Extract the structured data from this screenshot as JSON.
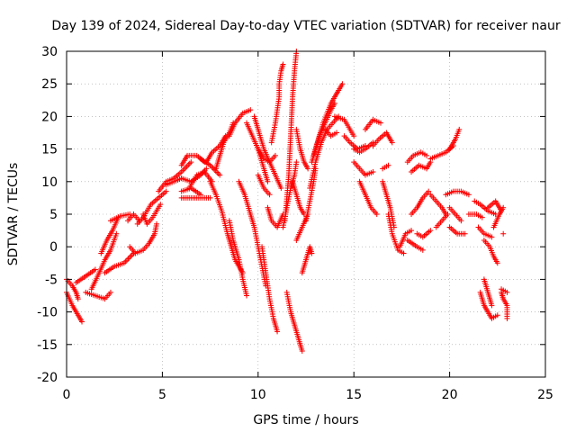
{
  "chart_data": {
    "type": "scatter",
    "title": "Day 139 of 2024, Sidereal Day-to-day VTEC variation (SDTVAR) for receiver naur",
    "xlabel": "GPS time / hours",
    "ylabel": "SDTVAR / TECUs",
    "xlim": [
      0,
      25
    ],
    "ylim": [
      -20,
      30
    ],
    "xticks": [
      "0",
      "5",
      "10",
      "15",
      "20",
      "25"
    ],
    "xtick_values": [
      0,
      5,
      10,
      15,
      20,
      25
    ],
    "yticks": [
      "-20",
      "-15",
      "-10",
      "-5",
      "0",
      "5",
      "10",
      "15",
      "20",
      "25",
      "30"
    ],
    "ytick_values": [
      -20,
      -15,
      -10,
      -5,
      0,
      5,
      10,
      15,
      20,
      25,
      30
    ],
    "grid": true,
    "marker": "+",
    "series_color": "#ff0000",
    "tracks": [
      [
        [
          0.0,
          -7
        ],
        [
          0.3,
          -9
        ],
        [
          0.6,
          -10.5
        ],
        [
          0.8,
          -11.5
        ]
      ],
      [
        [
          0.0,
          -5
        ],
        [
          0.3,
          -6
        ],
        [
          0.5,
          -7
        ],
        [
          0.6,
          -8
        ]
      ],
      [
        [
          0.5,
          -5.5
        ],
        [
          1.0,
          -4.5
        ],
        [
          1.5,
          -3.5
        ]
      ],
      [
        [
          1.0,
          -7
        ],
        [
          1.5,
          -7.5
        ],
        [
          2.0,
          -8
        ],
        [
          2.3,
          -7
        ]
      ],
      [
        [
          1.3,
          -6.5
        ],
        [
          1.7,
          -4
        ],
        [
          2.0,
          -2
        ],
        [
          2.3,
          -0.5
        ],
        [
          2.6,
          2
        ]
      ],
      [
        [
          1.8,
          -1
        ],
        [
          2.1,
          1
        ],
        [
          2.4,
          2.5
        ],
        [
          2.7,
          4.5
        ]
      ],
      [
        [
          2.3,
          4
        ],
        [
          2.8,
          4.7
        ],
        [
          3.3,
          5
        ]
      ],
      [
        [
          2.0,
          -4
        ],
        [
          2.5,
          -3
        ],
        [
          3.0,
          -2.5
        ],
        [
          3.5,
          -1
        ]
      ],
      [
        [
          3.2,
          4
        ],
        [
          3.5,
          5
        ],
        [
          3.8,
          4
        ]
      ],
      [
        [
          3.3,
          0
        ],
        [
          3.6,
          -1
        ],
        [
          4.0,
          -0.5
        ],
        [
          4.3,
          0.5
        ],
        [
          4.6,
          2
        ],
        [
          4.7,
          3.5
        ]
      ],
      [
        [
          3.7,
          3.5
        ],
        [
          4.0,
          4.5
        ],
        [
          4.4,
          6.5
        ],
        [
          4.8,
          7.5
        ],
        [
          5.2,
          8.5
        ]
      ],
      [
        [
          4.0,
          5
        ],
        [
          4.2,
          3.5
        ],
        [
          4.5,
          4.5
        ],
        [
          4.9,
          6.5
        ]
      ],
      [
        [
          4.8,
          8.5
        ],
        [
          5.2,
          10
        ],
        [
          5.6,
          10.5
        ],
        [
          6.0,
          11.5
        ],
        [
          6.5,
          13
        ]
      ],
      [
        [
          5.2,
          9.5
        ],
        [
          5.6,
          10
        ],
        [
          6.0,
          10.5
        ]
      ],
      [
        [
          6.0,
          12.5
        ],
        [
          6.3,
          14
        ],
        [
          6.8,
          14
        ],
        [
          7.2,
          13
        ]
      ],
      [
        [
          6.0,
          10.5
        ],
        [
          6.5,
          10
        ],
        [
          7.0,
          11
        ],
        [
          7.3,
          12
        ]
      ],
      [
        [
          6.0,
          8.5
        ],
        [
          6.5,
          9
        ],
        [
          7.0,
          8
        ]
      ],
      [
        [
          6.0,
          7.5
        ],
        [
          6.5,
          7.5
        ],
        [
          7.0,
          7.5
        ],
        [
          7.5,
          7.5
        ]
      ],
      [
        [
          6.4,
          9
        ],
        [
          6.8,
          11
        ],
        [
          7.2,
          11.5
        ],
        [
          7.6,
          10
        ]
      ],
      [
        [
          7.0,
          13.5
        ],
        [
          7.5,
          12.5
        ],
        [
          8.0,
          11
        ]
      ],
      [
        [
          7.3,
          13
        ],
        [
          7.6,
          14.5
        ],
        [
          8.0,
          15.5
        ],
        [
          8.3,
          17
        ]
      ],
      [
        [
          7.5,
          10
        ],
        [
          7.8,
          8
        ],
        [
          8.1,
          5.5
        ],
        [
          8.4,
          2
        ],
        [
          8.6,
          0
        ],
        [
          8.8,
          -2
        ],
        [
          9.0,
          -3
        ],
        [
          9.2,
          -4
        ]
      ],
      [
        [
          7.8,
          12
        ],
        [
          8.0,
          14
        ],
        [
          8.2,
          16
        ],
        [
          8.5,
          17.5
        ],
        [
          8.7,
          19
        ]
      ],
      [
        [
          8.5,
          4
        ],
        [
          8.7,
          1
        ],
        [
          9.0,
          -2
        ],
        [
          9.2,
          -5
        ],
        [
          9.4,
          -7.5
        ]
      ],
      [
        [
          8.5,
          17
        ],
        [
          8.8,
          19
        ],
        [
          9.2,
          20.5
        ],
        [
          9.6,
          21
        ]
      ],
      [
        [
          9.0,
          10
        ],
        [
          9.3,
          8
        ],
        [
          9.6,
          5
        ],
        [
          9.8,
          3
        ],
        [
          10.0,
          0
        ],
        [
          10.2,
          -3
        ],
        [
          10.4,
          -6
        ]
      ],
      [
        [
          9.4,
          19
        ],
        [
          9.7,
          17
        ],
        [
          10.0,
          15
        ],
        [
          10.3,
          12
        ],
        [
          10.5,
          10
        ]
      ],
      [
        [
          9.8,
          20
        ],
        [
          10.0,
          18
        ],
        [
          10.3,
          15
        ],
        [
          10.6,
          13
        ],
        [
          10.9,
          11
        ],
        [
          11.2,
          9
        ]
      ],
      [
        [
          10.0,
          15
        ],
        [
          10.3,
          13.5
        ],
        [
          10.6,
          13
        ],
        [
          10.9,
          14
        ]
      ],
      [
        [
          10.2,
          0
        ],
        [
          10.4,
          -4
        ],
        [
          10.6,
          -8
        ],
        [
          10.8,
          -11
        ],
        [
          11.0,
          -13
        ]
      ],
      [
        [
          10.0,
          11
        ],
        [
          10.3,
          9
        ],
        [
          10.6,
          8
        ]
      ],
      [
        [
          10.5,
          6
        ],
        [
          10.7,
          4
        ],
        [
          11.0,
          3
        ],
        [
          11.3,
          5
        ]
      ],
      [
        [
          10.7,
          16
        ],
        [
          10.9,
          19
        ],
        [
          11.0,
          21
        ],
        [
          11.1,
          23
        ],
        [
          11.1,
          25
        ],
        [
          11.2,
          27
        ],
        [
          11.3,
          28
        ]
      ],
      [
        [
          11.3,
          3
        ],
        [
          11.5,
          6
        ],
        [
          11.7,
          9
        ],
        [
          11.9,
          11
        ],
        [
          12.0,
          13
        ]
      ],
      [
        [
          11.4,
          4
        ],
        [
          11.6,
          11
        ],
        [
          11.7,
          17
        ],
        [
          11.8,
          23
        ],
        [
          11.9,
          27
        ],
        [
          12.0,
          30
        ]
      ],
      [
        [
          11.5,
          -7
        ],
        [
          11.7,
          -10
        ],
        [
          11.9,
          -12
        ],
        [
          12.1,
          -14
        ],
        [
          12.3,
          -16
        ]
      ],
      [
        [
          11.8,
          10
        ],
        [
          12.0,
          8
        ],
        [
          12.2,
          6
        ],
        [
          12.4,
          5
        ]
      ],
      [
        [
          12.0,
          18
        ],
        [
          12.2,
          15
        ],
        [
          12.4,
          13
        ],
        [
          12.6,
          12
        ]
      ],
      [
        [
          12.3,
          -4
        ],
        [
          12.5,
          -2
        ],
        [
          12.7,
          0
        ],
        [
          12.8,
          -1
        ]
      ],
      [
        [
          12.0,
          1
        ],
        [
          12.3,
          3
        ],
        [
          12.6,
          5
        ]
      ],
      [
        [
          12.5,
          4
        ],
        [
          12.7,
          7
        ],
        [
          12.9,
          10
        ],
        [
          13.0,
          12
        ]
      ],
      [
        [
          12.7,
          9
        ],
        [
          13.0,
          13
        ],
        [
          13.3,
          16
        ],
        [
          13.6,
          18
        ],
        [
          13.9,
          19
        ],
        [
          14.2,
          20
        ]
      ],
      [
        [
          12.8,
          13
        ],
        [
          13.1,
          16
        ],
        [
          13.4,
          19
        ],
        [
          13.8,
          22
        ],
        [
          14.1,
          23.5
        ],
        [
          14.4,
          25
        ]
      ],
      [
        [
          12.9,
          14
        ],
        [
          13.2,
          17
        ],
        [
          13.5,
          19
        ],
        [
          13.8,
          21
        ],
        [
          14.0,
          22
        ]
      ],
      [
        [
          13.5,
          18
        ],
        [
          13.8,
          17
        ],
        [
          14.1,
          17.5
        ]
      ],
      [
        [
          14.0,
          20
        ],
        [
          14.5,
          19.5
        ],
        [
          15.0,
          17
        ]
      ],
      [
        [
          14.5,
          17
        ],
        [
          14.8,
          16
        ],
        [
          15.2,
          15
        ],
        [
          15.6,
          15.5
        ]
      ],
      [
        [
          15.0,
          15
        ],
        [
          15.3,
          14.5
        ],
        [
          15.6,
          15
        ],
        [
          16.0,
          16
        ]
      ],
      [
        [
          15.0,
          13
        ],
        [
          15.3,
          12
        ],
        [
          15.6,
          11
        ],
        [
          16.0,
          11.5
        ]
      ],
      [
        [
          15.3,
          10
        ],
        [
          15.6,
          8
        ],
        [
          15.9,
          6
        ],
        [
          16.2,
          5
        ]
      ],
      [
        [
          15.6,
          18
        ],
        [
          16.0,
          19.5
        ],
        [
          16.4,
          19
        ]
      ],
      [
        [
          16.0,
          15.5
        ],
        [
          16.3,
          16.5
        ],
        [
          16.7,
          17.5
        ],
        [
          17.0,
          16
        ]
      ],
      [
        [
          16.5,
          12
        ],
        [
          16.8,
          12.5
        ]
      ],
      [
        [
          16.5,
          10
        ],
        [
          16.7,
          8
        ],
        [
          16.9,
          6
        ],
        [
          17.1,
          3
        ]
      ],
      [
        [
          16.8,
          5
        ],
        [
          17.0,
          2
        ],
        [
          17.3,
          -0.5
        ],
        [
          17.6,
          -1
        ]
      ],
      [
        [
          17.4,
          0
        ],
        [
          17.7,
          2
        ],
        [
          18.0,
          2.5
        ]
      ],
      [
        [
          17.8,
          1
        ],
        [
          18.3,
          0
        ],
        [
          18.6,
          -0.5
        ]
      ],
      [
        [
          18.0,
          5
        ],
        [
          18.3,
          6
        ],
        [
          18.6,
          7.5
        ],
        [
          18.9,
          8.5
        ]
      ],
      [
        [
          17.8,
          13
        ],
        [
          18.1,
          14
        ],
        [
          18.5,
          14.5
        ],
        [
          18.8,
          14
        ]
      ],
      [
        [
          18.0,
          11.5
        ],
        [
          18.4,
          12.5
        ],
        [
          18.8,
          12
        ],
        [
          19.0,
          13
        ]
      ],
      [
        [
          18.3,
          2
        ],
        [
          18.6,
          1.5
        ],
        [
          19.0,
          2.5
        ]
      ],
      [
        [
          19.0,
          8
        ],
        [
          19.3,
          7
        ],
        [
          19.6,
          6
        ],
        [
          19.8,
          5
        ]
      ],
      [
        [
          19.3,
          3
        ],
        [
          19.6,
          4
        ],
        [
          19.9,
          5
        ]
      ],
      [
        [
          19.0,
          13.5
        ],
        [
          19.4,
          14
        ],
        [
          19.8,
          14.5
        ],
        [
          20.2,
          15.5
        ]
      ],
      [
        [
          20.0,
          15
        ],
        [
          20.3,
          16.5
        ],
        [
          20.5,
          18
        ]
      ],
      [
        [
          19.8,
          8
        ],
        [
          20.2,
          8.5
        ],
        [
          20.6,
          8.5
        ],
        [
          21.0,
          8
        ]
      ],
      [
        [
          20.0,
          6
        ],
        [
          20.3,
          5
        ],
        [
          20.6,
          4
        ]
      ],
      [
        [
          20.0,
          3
        ],
        [
          20.4,
          2
        ],
        [
          20.8,
          2
        ]
      ],
      [
        [
          21.0,
          5
        ],
        [
          21.4,
          5
        ],
        [
          21.7,
          4.5
        ]
      ],
      [
        [
          21.3,
          7
        ],
        [
          21.6,
          6.5
        ],
        [
          22.0,
          5.5
        ],
        [
          22.4,
          5
        ]
      ],
      [
        [
          21.5,
          3
        ],
        [
          21.8,
          2
        ],
        [
          22.2,
          1.5
        ]
      ],
      [
        [
          21.8,
          1
        ],
        [
          22.1,
          0
        ],
        [
          22.3,
          -1.5
        ],
        [
          22.5,
          -2.5
        ]
      ],
      [
        [
          21.6,
          -7
        ],
        [
          21.8,
          -9
        ],
        [
          22.0,
          -10
        ],
        [
          22.2,
          -11
        ],
        [
          22.5,
          -10.5
        ]
      ],
      [
        [
          21.8,
          -5
        ],
        [
          22.0,
          -7
        ],
        [
          22.2,
          -9
        ]
      ],
      [
        [
          22.3,
          3
        ],
        [
          22.6,
          5
        ],
        [
          22.8,
          6
        ]
      ],
      [
        [
          22.0,
          6
        ],
        [
          22.4,
          7
        ],
        [
          22.7,
          5.5
        ]
      ],
      [
        [
          22.8,
          2
        ]
      ],
      [
        [
          22.7,
          -7
        ],
        [
          22.8,
          -8
        ],
        [
          23.0,
          -9
        ],
        [
          23.0,
          -11
        ]
      ],
      [
        [
          22.7,
          -6.5
        ],
        [
          23.0,
          -7
        ]
      ]
    ]
  }
}
